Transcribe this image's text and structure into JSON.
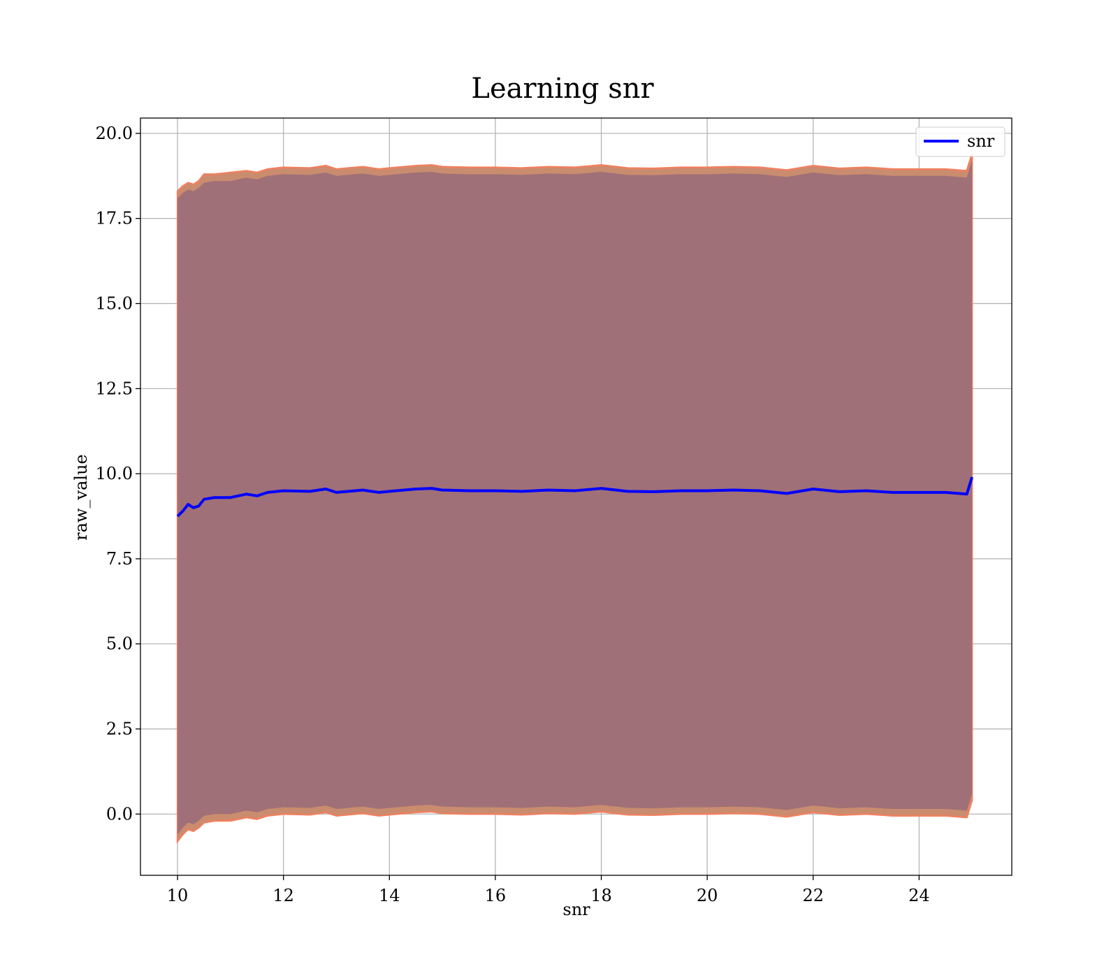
{
  "chart_data": {
    "type": "line",
    "title": "Learning snr",
    "xlabel": "snr",
    "ylabel": "raw_value",
    "xlim": [
      9.3,
      25.75
    ],
    "ylim": [
      -1.8,
      20.45
    ],
    "xticks": [
      10,
      12,
      14,
      16,
      18,
      20,
      22,
      24
    ],
    "yticks": [
      0.0,
      2.5,
      5.0,
      7.5,
      10.0,
      12.5,
      15.0,
      17.5,
      20.0
    ],
    "grid": true,
    "legend": {
      "placement": "top-right",
      "entries": [
        "snr"
      ]
    },
    "colors": {
      "line": "#0000ff",
      "band_outer": "#f08060",
      "band_outer_fill": "#c98c6e",
      "band_inner": "#a07078",
      "grid": "#b0b0b0"
    },
    "series": [
      {
        "name": "snr",
        "x": [
          10.0,
          10.1,
          10.2,
          10.3,
          10.4,
          10.5,
          10.7,
          11.0,
          11.3,
          11.5,
          11.7,
          12.0,
          12.5,
          12.8,
          13.0,
          13.5,
          13.8,
          14.0,
          14.5,
          14.8,
          15.0,
          15.5,
          16.0,
          16.5,
          17.0,
          17.5,
          18.0,
          18.5,
          19.0,
          19.5,
          20.0,
          20.5,
          21.0,
          21.5,
          22.0,
          22.5,
          23.0,
          23.5,
          24.0,
          24.5,
          24.9,
          25.0
        ],
        "y": [
          8.75,
          8.9,
          9.1,
          9.0,
          9.05,
          9.25,
          9.3,
          9.3,
          9.4,
          9.35,
          9.45,
          9.5,
          9.48,
          9.55,
          9.45,
          9.52,
          9.45,
          9.48,
          9.55,
          9.57,
          9.52,
          9.5,
          9.5,
          9.48,
          9.52,
          9.5,
          9.57,
          9.48,
          9.47,
          9.5,
          9.5,
          9.52,
          9.5,
          9.42,
          9.55,
          9.47,
          9.5,
          9.45,
          9.45,
          9.45,
          9.4,
          9.9
        ]
      }
    ],
    "band_outer": {
      "x": [
        10.0,
        10.1,
        10.2,
        10.3,
        10.4,
        10.5,
        10.7,
        11.0,
        11.3,
        11.5,
        11.7,
        12.0,
        12.5,
        12.8,
        13.0,
        13.5,
        13.8,
        14.0,
        14.5,
        14.8,
        15.0,
        15.5,
        16.0,
        16.5,
        17.0,
        17.5,
        18.0,
        18.5,
        19.0,
        19.5,
        20.0,
        20.5,
        21.0,
        21.5,
        22.0,
        22.5,
        23.0,
        23.5,
        24.0,
        24.5,
        24.9,
        25.0
      ],
      "upper": [
        18.3,
        18.45,
        18.55,
        18.5,
        18.6,
        18.8,
        18.8,
        18.85,
        18.9,
        18.85,
        18.95,
        19.0,
        18.98,
        19.05,
        18.95,
        19.02,
        18.95,
        18.98,
        19.05,
        19.07,
        19.02,
        19.0,
        19.0,
        18.98,
        19.02,
        19.0,
        19.07,
        18.98,
        18.97,
        19.0,
        19.0,
        19.02,
        19.0,
        18.92,
        19.05,
        18.97,
        19.0,
        18.95,
        18.95,
        18.95,
        18.9,
        19.4
      ],
      "lower": [
        -0.8,
        -0.6,
        -0.45,
        -0.5,
        -0.4,
        -0.25,
        -0.2,
        -0.2,
        -0.1,
        -0.15,
        -0.05,
        0.0,
        -0.02,
        0.05,
        -0.05,
        0.02,
        -0.05,
        -0.02,
        0.05,
        0.07,
        0.02,
        0.0,
        0.0,
        -0.02,
        0.02,
        0.0,
        0.07,
        -0.02,
        -0.03,
        0.0,
        0.0,
        0.02,
        0.0,
        -0.08,
        0.05,
        -0.03,
        0.0,
        -0.05,
        -0.05,
        -0.05,
        -0.1,
        0.4
      ]
    },
    "band_inner": {
      "x": [
        10.0,
        10.1,
        10.2,
        10.3,
        10.4,
        10.5,
        10.7,
        11.0,
        11.3,
        11.5,
        11.7,
        12.0,
        12.5,
        12.8,
        13.0,
        13.5,
        13.8,
        14.0,
        14.5,
        14.8,
        15.0,
        15.5,
        16.0,
        16.5,
        17.0,
        17.5,
        18.0,
        18.5,
        19.0,
        19.5,
        20.0,
        20.5,
        21.0,
        21.5,
        22.0,
        22.5,
        23.0,
        23.5,
        24.0,
        24.5,
        24.9,
        25.0
      ],
      "upper": [
        18.1,
        18.25,
        18.35,
        18.3,
        18.4,
        18.55,
        18.6,
        18.6,
        18.7,
        18.65,
        18.75,
        18.8,
        18.78,
        18.85,
        18.75,
        18.82,
        18.75,
        18.78,
        18.85,
        18.87,
        18.82,
        18.8,
        18.8,
        18.78,
        18.82,
        18.8,
        18.87,
        18.78,
        18.77,
        18.8,
        18.8,
        18.82,
        18.8,
        18.72,
        18.85,
        18.77,
        18.8,
        18.75,
        18.75,
        18.75,
        18.7,
        19.2
      ],
      "lower": [
        -0.6,
        -0.4,
        -0.25,
        -0.3,
        -0.2,
        -0.05,
        0.0,
        0.0,
        0.1,
        0.05,
        0.15,
        0.2,
        0.18,
        0.25,
        0.15,
        0.22,
        0.15,
        0.18,
        0.25,
        0.27,
        0.22,
        0.2,
        0.2,
        0.18,
        0.22,
        0.2,
        0.27,
        0.18,
        0.17,
        0.2,
        0.2,
        0.22,
        0.2,
        0.12,
        0.25,
        0.17,
        0.2,
        0.15,
        0.15,
        0.15,
        0.1,
        0.6
      ]
    }
  }
}
